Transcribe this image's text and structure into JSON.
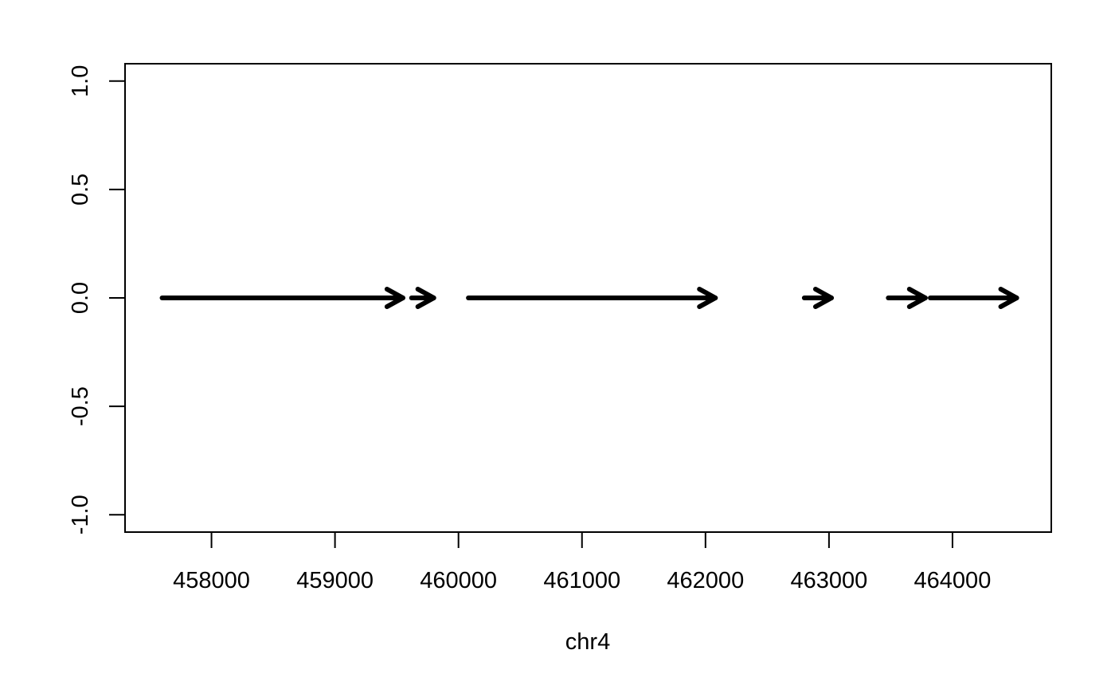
{
  "chart_data": {
    "type": "line",
    "title": "",
    "xlabel": "chr4",
    "ylabel": "",
    "xlim": [
      457300,
      464800
    ],
    "ylim": [
      -1.08,
      1.08
    ],
    "x_ticks": [
      458000,
      459000,
      460000,
      461000,
      462000,
      463000,
      464000
    ],
    "x_tick_labels": [
      "458000",
      "459000",
      "460000",
      "461000",
      "462000",
      "463000",
      "464000"
    ],
    "y_ticks": [
      -1.0,
      -0.5,
      0.0,
      0.5,
      1.0
    ],
    "y_tick_labels": [
      "-1.0",
      "-0.5",
      "0.0",
      "0.5",
      "1.0"
    ],
    "grid": false,
    "legend": "none",
    "series": [
      {
        "marks": "arrows",
        "color": "#000000",
        "segments": [
          {
            "start": 457600,
            "end": 459550,
            "y": 0
          },
          {
            "start": 459620,
            "end": 459800,
            "y": 0
          },
          {
            "start": 460080,
            "end": 462080,
            "y": 0
          },
          {
            "start": 462800,
            "end": 463020,
            "y": 0
          },
          {
            "start": 463480,
            "end": 463780,
            "y": 0
          },
          {
            "start": 463820,
            "end": 464520,
            "y": 0
          }
        ]
      }
    ]
  }
}
